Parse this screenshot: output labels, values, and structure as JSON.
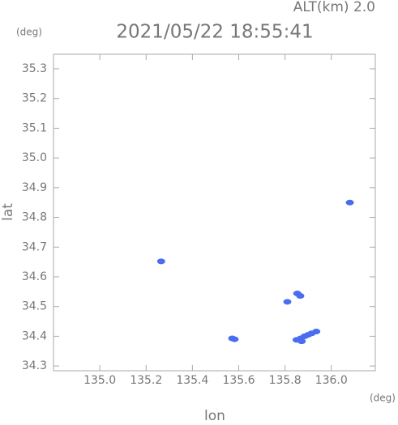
{
  "chart_data": {
    "type": "scatter",
    "title": "2021/05/22 18:55:41",
    "subtitle": "ALT(km) 2.0",
    "y_unit": "(deg)",
    "x_unit": "(deg)",
    "x_label": "lon",
    "y_label": "lat",
    "x": [
      135.265,
      135.572,
      135.582,
      135.81,
      135.853,
      135.866,
      135.85,
      135.868,
      135.885,
      135.9,
      135.915,
      135.935,
      135.872,
      136.08
    ],
    "values": [
      34.652,
      34.393,
      34.39,
      34.516,
      34.544,
      34.536,
      34.388,
      34.393,
      34.4,
      34.405,
      34.41,
      34.416,
      34.383,
      34.85
    ],
    "color": "#4a6cf0",
    "xlim": [
      134.8,
      136.19
    ],
    "ylim": [
      34.284,
      35.349
    ],
    "xticks": [
      {
        "value": 135.0,
        "label": "135.0"
      },
      135.2,
      135.4,
      135.6,
      135.8,
      {
        "value": 136.0,
        "label": "136.0"
      }
    ],
    "yticks": [
      34.3,
      34.4,
      34.5,
      34.6,
      34.7,
      34.8,
      34.9,
      {
        "value": 35.0,
        "label": "35.0"
      },
      35.1,
      35.2,
      35.3
    ]
  }
}
